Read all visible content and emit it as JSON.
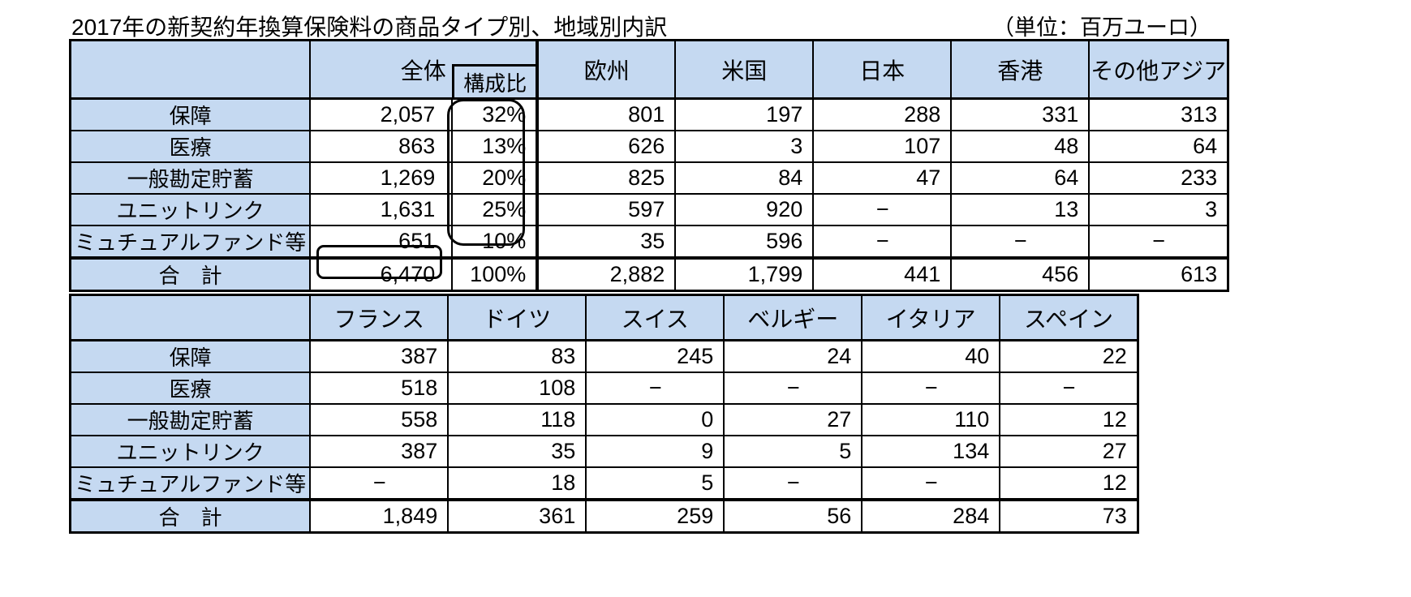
{
  "title": "2017年の新契約年換算保険料の商品タイプ別、地域別内訳",
  "unit_note": "（単位：百万ユーロ）",
  "colors": {
    "header_fill": "#c5d9f1",
    "grid_line": "#000000",
    "background": "#ffffff"
  },
  "annotations": {
    "ratio_column_highlight": "rounded rectangle around composition ratio values",
    "total_value_highlight": "rounded rectangle around overall total 6,470"
  },
  "table1": {
    "corner": "",
    "col_overall": "全体",
    "col_ratio": "構成比",
    "columns": [
      "欧州",
      "米国",
      "日本",
      "香港",
      "その他アジア"
    ],
    "rows": [
      {
        "label": "保障",
        "overall": "2,057",
        "ratio": "32%",
        "values": [
          "801",
          "197",
          "288",
          "331",
          "313"
        ]
      },
      {
        "label": "医療",
        "overall": "863",
        "ratio": "13%",
        "values": [
          "626",
          "3",
          "107",
          "48",
          "64"
        ]
      },
      {
        "label": "一般勘定貯蓄",
        "overall": "1,269",
        "ratio": "20%",
        "values": [
          "825",
          "84",
          "47",
          "64",
          "233"
        ]
      },
      {
        "label": "ユニットリンク",
        "overall": "1,631",
        "ratio": "25%",
        "values": [
          "597",
          "920",
          "−",
          "13",
          "3"
        ]
      },
      {
        "label": "ミュチュアルファンド等",
        "overall": "651",
        "ratio": "10%",
        "values": [
          "35",
          "596",
          "−",
          "−",
          "−"
        ]
      }
    ],
    "total": {
      "label": "合　計",
      "overall": "6,470",
      "ratio": "100%",
      "values": [
        "2,882",
        "1,799",
        "441",
        "456",
        "613"
      ]
    }
  },
  "table2": {
    "corner": "",
    "columns": [
      "フランス",
      "ドイツ",
      "スイス",
      "ベルギー",
      "イタリア",
      "スペイン"
    ],
    "rows": [
      {
        "label": "保障",
        "values": [
          "387",
          "83",
          "245",
          "24",
          "40",
          "22"
        ]
      },
      {
        "label": "医療",
        "values": [
          "518",
          "108",
          "−",
          "−",
          "−",
          "−"
        ]
      },
      {
        "label": "一般勘定貯蓄",
        "values": [
          "558",
          "118",
          "0",
          "27",
          "110",
          "12"
        ]
      },
      {
        "label": "ユニットリンク",
        "values": [
          "387",
          "35",
          "9",
          "5",
          "134",
          "27"
        ]
      },
      {
        "label": "ミュチュアルファンド等",
        "values": [
          "−",
          "18",
          "5",
          "−",
          "−",
          "12"
        ]
      }
    ],
    "total": {
      "label": "合　計",
      "values": [
        "1,849",
        "361",
        "259",
        "56",
        "284",
        "73"
      ]
    }
  }
}
